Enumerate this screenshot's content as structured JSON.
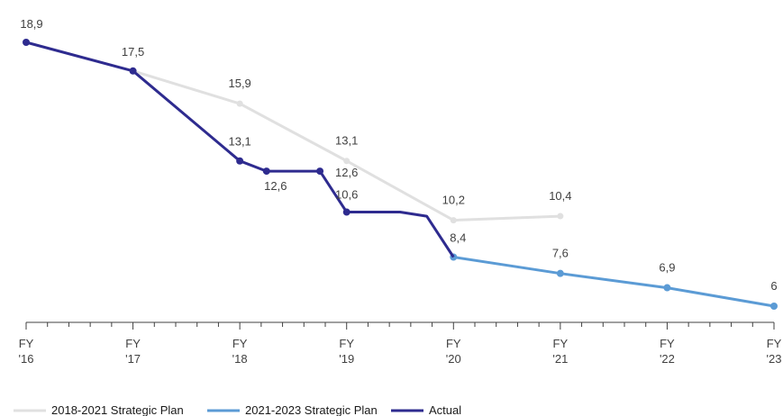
{
  "chart_data": {
    "type": "line",
    "categories": [
      "FY\n'16",
      "FY\n'17",
      "FY\n'18",
      "FY\n'19",
      "FY\n'20",
      "FY\n'21",
      "FY\n'22",
      "FY\n'23"
    ],
    "ylim": [
      5,
      20
    ],
    "series": [
      {
        "name": "2018-2021 Strategic Plan",
        "color": "#e0e0e0",
        "points": [
          {
            "x": 1,
            "y": 17.5
          },
          {
            "x": 2,
            "y": 15.9
          },
          {
            "x": 3,
            "y": 13.1
          },
          {
            "x": 4,
            "y": 10.2
          },
          {
            "x": 5,
            "y": 10.4
          }
        ],
        "labels": [
          {
            "x": 2,
            "y": 15.9,
            "text": "15,9"
          },
          {
            "x": 3,
            "y": 13.1,
            "text": "13,1"
          },
          {
            "x": 4,
            "y": 10.2,
            "text": "10,2"
          },
          {
            "x": 5,
            "y": 10.4,
            "text": "10,4"
          }
        ]
      },
      {
        "name": "2021-2023 Strategic Plan",
        "color": "#5b9bd5",
        "points": [
          {
            "x": 4,
            "y": 8.4
          },
          {
            "x": 5,
            "y": 7.6
          },
          {
            "x": 6,
            "y": 6.9
          },
          {
            "x": 7,
            "y": 6.0
          }
        ],
        "labels": [
          {
            "x": 5,
            "y": 7.6,
            "text": "7,6"
          },
          {
            "x": 6,
            "y": 6.9,
            "text": "6,9"
          },
          {
            "x": 7,
            "y": 6.0,
            "text": "6"
          }
        ]
      },
      {
        "name": "Actual",
        "color": "#2e2b8f",
        "points": [
          {
            "x": 0,
            "y": 18.9,
            "marker": true
          },
          {
            "x": 1,
            "y": 17.5,
            "marker": true
          },
          {
            "x": 2,
            "y": 13.1,
            "marker": true
          },
          {
            "x": 2.25,
            "y": 12.6,
            "marker": true
          },
          {
            "x": 2.75,
            "y": 12.6,
            "marker": true
          },
          {
            "x": 3,
            "y": 10.6,
            "marker": true
          },
          {
            "x": 3.5,
            "y": 10.6,
            "marker": false
          },
          {
            "x": 3.75,
            "y": 10.4,
            "marker": false
          },
          {
            "x": 4,
            "y": 8.4,
            "marker": false
          }
        ],
        "labels": [
          {
            "x": 0,
            "y": 18.9,
            "text": "18,9"
          },
          {
            "x": 1,
            "y": 17.5,
            "text": "17,5"
          },
          {
            "x": 2,
            "y": 13.1,
            "text": "13,1"
          },
          {
            "x": 2.25,
            "y": 12.6,
            "text": "12,6"
          },
          {
            "x": 3,
            "y": 12.6,
            "text": "12,6"
          },
          {
            "x": 3,
            "y": 10.6,
            "text": "10,6"
          },
          {
            "x": 4,
            "y": 8.4,
            "text": "8,4"
          }
        ]
      }
    ],
    "legend": {
      "placement": "bottom-left",
      "items": [
        {
          "name": "2018-2021 Strategic Plan",
          "color": "#e0e0e0"
        },
        {
          "name": "2021-2023 Strategic Plan",
          "color": "#5b9bd5"
        },
        {
          "name": "Actual",
          "color": "#2e2b8f"
        }
      ]
    },
    "grid": false
  }
}
